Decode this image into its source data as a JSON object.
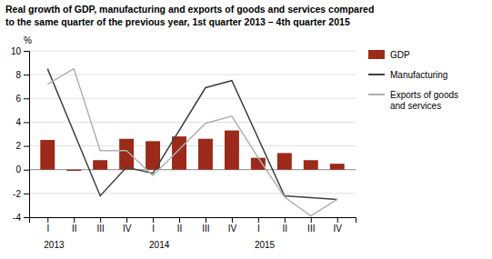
{
  "chart_data": {
    "type": "bar",
    "title": "Real growth of GDP, manufacturing and exports of goods and services compared\nto the same quarter of the previous year, 1st quarter 2013 – 4th quarter 2015",
    "ylabel": "%",
    "xlim": [
      0.3,
      12.7
    ],
    "xticks": [
      {
        "value": 1,
        "label": "I"
      },
      {
        "value": 2,
        "label": "II"
      },
      {
        "value": 3,
        "label": "III"
      },
      {
        "value": 4,
        "label": "IV"
      },
      {
        "value": 5,
        "label": "I"
      },
      {
        "value": 6,
        "label": "II"
      },
      {
        "value": 7,
        "label": "III"
      },
      {
        "value": 8,
        "label": "IV"
      },
      {
        "value": 9,
        "label": "I"
      },
      {
        "value": 10,
        "label": "II"
      },
      {
        "value": 11,
        "label": "III"
      },
      {
        "value": 12,
        "label": "IV"
      }
    ],
    "ylim": [
      -4,
      10
    ],
    "yticks": [
      -4,
      -2,
      0,
      2,
      4,
      6,
      8,
      10
    ],
    "grid": true,
    "legend": "right",
    "annotations": [
      {
        "text": "2013",
        "x": 1
      },
      {
        "text": "2014",
        "x": 5
      },
      {
        "text": "2015",
        "x": 9
      }
    ],
    "series": [
      {
        "name": "GDP",
        "type": "bar",
        "color": "#9b2a1a",
        "x": [
          1,
          2,
          3,
          4,
          5,
          6,
          7,
          8,
          9,
          10,
          11,
          12
        ],
        "values": [
          2.5,
          -0.1,
          0.8,
          2.6,
          2.4,
          2.8,
          2.6,
          3.3,
          1.0,
          1.4,
          0.8,
          0.5
        ]
      },
      {
        "name": "Manufacturing",
        "type": "line",
        "color": "#404040",
        "x": [
          1,
          3,
          4,
          5,
          7,
          8,
          10,
          12
        ],
        "values": [
          8.5,
          -2.2,
          0.2,
          -0.3,
          6.9,
          7.5,
          -2.2,
          -2.5
        ]
      },
      {
        "name": "Exports of goods\nand services",
        "type": "line",
        "color": "#b0b0b0",
        "x": [
          1,
          2,
          3,
          4,
          5,
          7,
          8,
          9,
          10,
          11,
          12
        ],
        "values": [
          7.2,
          8.5,
          1.6,
          1.6,
          -0.5,
          3.9,
          4.5,
          1.0,
          -2.3,
          -3.9,
          -2.5
        ]
      }
    ]
  }
}
